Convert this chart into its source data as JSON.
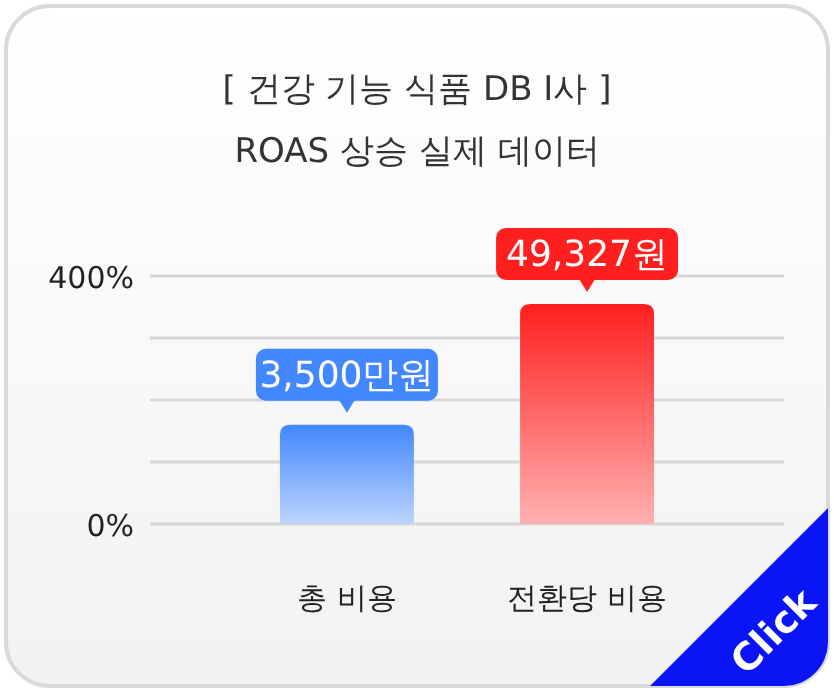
{
  "chart_data": {
    "type": "bar",
    "title": "[ 건강 기능 식품 DB I사 ]",
    "subtitle": "ROAS 상승 실제 데이터",
    "categories": [
      "총 비용",
      "전환당 비용"
    ],
    "values": [
      160,
      355
    ],
    "colors": [
      "#4287fd",
      "#ff1f1f"
    ],
    "ylim": [
      0,
      400
    ],
    "yticks": [
      {
        "value": 0,
        "label": "0%"
      },
      {
        "value": 100,
        "label": null
      },
      {
        "value": 200,
        "label": null
      },
      {
        "value": 300,
        "label": null
      },
      {
        "value": 400,
        "label": "400%"
      }
    ],
    "grid": "y",
    "annotations": [
      {
        "text": "3,500만원",
        "x": "총 비용",
        "y": 160
      },
      {
        "text": "49,327원",
        "x": "전환당 비용",
        "y": 355
      },
      "Click"
    ]
  }
}
